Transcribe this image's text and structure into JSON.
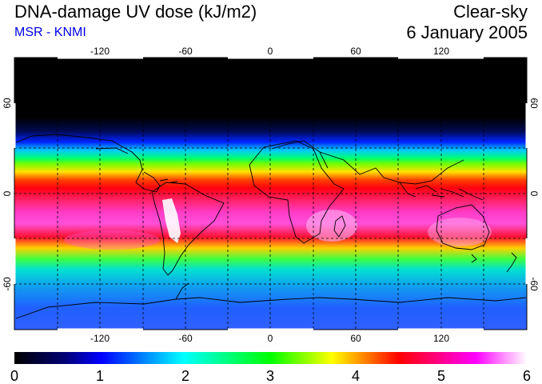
{
  "header": {
    "title": "DNA-damage UV dose (kJ/m2)",
    "subtitle": "MSR - KNMI",
    "condition": "Clear-sky",
    "date": "6 January 2005"
  },
  "map": {
    "projection": "equirectangular",
    "lon_range": [
      -180,
      180
    ],
    "lat_range": [
      -90,
      90
    ],
    "lon_ticks": [
      "-120",
      "-60",
      "0",
      "60",
      "120"
    ],
    "lat_ticks": [
      "60",
      "0",
      "-60"
    ],
    "grid": true
  },
  "colorbar": {
    "labels": [
      "0",
      "1",
      "2",
      "3",
      "4",
      "5",
      "6"
    ],
    "min": 0,
    "max": 6,
    "colors": [
      "#000000",
      "#0000ff",
      "#00ffff",
      "#00ff00",
      "#ffff00",
      "#ff0000",
      "#ff00ff",
      "#ffffff"
    ]
  }
}
